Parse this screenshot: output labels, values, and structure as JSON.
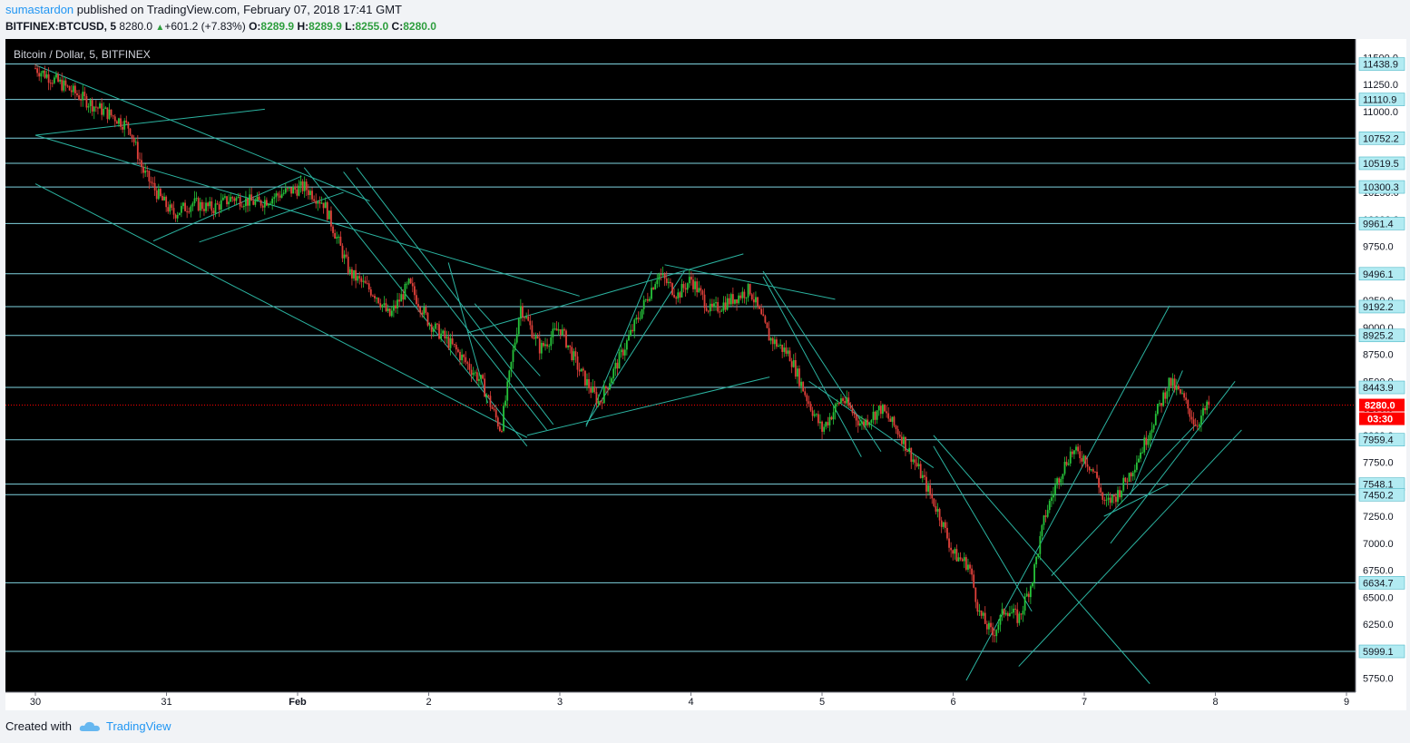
{
  "header": {
    "author": "sumastardon",
    "published_text": "published on TradingView.com, February 07, 2018 17:41 GMT",
    "symbol": "BITFINEX:BTCUSD, 5",
    "last": "8280.0",
    "change": "+601.2 (+7.83%)",
    "o_label": "O:",
    "o_value": "8289.9",
    "h_label": "H:",
    "h_value": "8289.9",
    "l_label": "L:",
    "l_value": "8255.0",
    "c_label": "C:",
    "c_value": "8280.0"
  },
  "footer": {
    "created_with": "Created with",
    "brand": "TradingView"
  },
  "colors": {
    "level_line": "#7fd3df",
    "trend_line": "#2bb3a0",
    "up": "#26c33a",
    "down": "#e0403a",
    "price_tag": "#ff0000"
  },
  "chart_data": {
    "type": "candlestick",
    "title": "Bitcoin / Dollar, 5, BITFINEX",
    "x_ticks": [
      "30",
      "31",
      "Feb",
      "2",
      "3",
      "4",
      "5",
      "6",
      "7",
      "8",
      "9"
    ],
    "y_ticks": [
      11500,
      11250,
      11000,
      10750,
      10500,
      10250,
      10000,
      9750,
      9500,
      9250,
      9000,
      8750,
      8500,
      8250,
      8000,
      7750,
      7500,
      7250,
      7000,
      6750,
      6500,
      6250,
      6000,
      5750
    ],
    "ylim": [
      5680,
      11620
    ],
    "horizontal_levels": [
      11438.9,
      11110.9,
      10752.2,
      10519.5,
      10300.3,
      9961.4,
      9496.1,
      9192.2,
      8925.2,
      8443.9,
      7959.4,
      7548.1,
      7450.2,
      6634.7,
      5999.1
    ],
    "current_price": {
      "value": 8280.0,
      "label": "8280.0",
      "countdown": "03:30"
    },
    "price_path": [
      [
        0,
        11400
      ],
      [
        0.2,
        11250
      ],
      [
        0.45,
        11050
      ],
      [
        0.6,
        10950
      ],
      [
        0.72,
        10850
      ],
      [
        0.82,
        10450
      ],
      [
        0.95,
        10200
      ],
      [
        1.05,
        10050
      ],
      [
        1.2,
        10150
      ],
      [
        1.35,
        10100
      ],
      [
        1.5,
        10200
      ],
      [
        1.7,
        10150
      ],
      [
        1.9,
        10250
      ],
      [
        2.05,
        10300
      ],
      [
        2.2,
        10150
      ],
      [
        2.4,
        9500
      ],
      [
        2.6,
        9300
      ],
      [
        2.7,
        9100
      ],
      [
        2.85,
        9400
      ],
      [
        3.0,
        9050
      ],
      [
        3.2,
        8800
      ],
      [
        3.4,
        8500
      ],
      [
        3.55,
        8050
      ],
      [
        3.7,
        9200
      ],
      [
        3.85,
        8800
      ],
      [
        4.0,
        9000
      ],
      [
        4.15,
        8600
      ],
      [
        4.3,
        8300
      ],
      [
        4.45,
        8700
      ],
      [
        4.6,
        9100
      ],
      [
        4.75,
        9500
      ],
      [
        4.9,
        9300
      ],
      [
        5.0,
        9450
      ],
      [
        5.15,
        9150
      ],
      [
        5.3,
        9250
      ],
      [
        5.45,
        9350
      ],
      [
        5.6,
        8900
      ],
      [
        5.75,
        8750
      ],
      [
        5.9,
        8300
      ],
      [
        6.0,
        8050
      ],
      [
        6.15,
        8350
      ],
      [
        6.3,
        8100
      ],
      [
        6.45,
        8250
      ],
      [
        6.6,
        8000
      ],
      [
        6.75,
        7650
      ],
      [
        6.9,
        7250
      ],
      [
        7.0,
        6900
      ],
      [
        7.12,
        6800
      ],
      [
        7.2,
        6350
      ],
      [
        7.3,
        6150
      ],
      [
        7.4,
        6400
      ],
      [
        7.5,
        6300
      ],
      [
        7.6,
        6650
      ],
      [
        7.7,
        7250
      ],
      [
        7.8,
        7600
      ],
      [
        7.9,
        7850
      ],
      [
        8.0,
        7800
      ],
      [
        8.1,
        7600
      ],
      [
        8.15,
        7350
      ],
      [
        8.25,
        7450
      ],
      [
        8.35,
        7650
      ],
      [
        8.45,
        7900
      ],
      [
        8.55,
        8200
      ],
      [
        8.65,
        8500
      ],
      [
        8.75,
        8350
      ],
      [
        8.85,
        8100
      ],
      [
        8.95,
        8280
      ]
    ],
    "trend_lines": [
      [
        0,
        10780,
        1.75,
        11020
      ],
      [
        0,
        11430,
        2.55,
        10170
      ],
      [
        0,
        10780,
        4.15,
        9290
      ],
      [
        0,
        10330,
        3.75,
        7980
      ],
      [
        0.9,
        9800,
        2.03,
        10400
      ],
      [
        1.25,
        9790,
        2.35,
        10250
      ],
      [
        2.05,
        10480,
        3.75,
        7900
      ],
      [
        2.35,
        10440,
        3.9,
        8050
      ],
      [
        2.45,
        10480,
        3.95,
        8100
      ],
      [
        3.15,
        9600,
        3.45,
        8300
      ],
      [
        3.35,
        9220,
        3.85,
        8550
      ],
      [
        3.75,
        8000,
        5.6,
        8540
      ],
      [
        3.3,
        8950,
        5.4,
        9680
      ],
      [
        4.2,
        8080,
        4.7,
        9520
      ],
      [
        4.2,
        8100,
        4.95,
        9520
      ],
      [
        4.8,
        9580,
        6.1,
        9260
      ],
      [
        5.55,
        9470,
        6.3,
        7800
      ],
      [
        5.55,
        9520,
        6.45,
        7850
      ],
      [
        5.9,
        8500,
        6.85,
        7700
      ],
      [
        6.85,
        7900,
        7.6,
        6370
      ],
      [
        7.1,
        5730,
        8.65,
        9200
      ],
      [
        6.85,
        8000,
        8.5,
        5700
      ],
      [
        7.5,
        5860,
        9.2,
        8050
      ],
      [
        7.75,
        6700,
        8.85,
        8100
      ],
      [
        8.2,
        7000,
        9.15,
        8500
      ],
      [
        8.15,
        7250,
        8.65,
        7550
      ],
      [
        8.35,
        7450,
        8.75,
        8600
      ]
    ]
  }
}
